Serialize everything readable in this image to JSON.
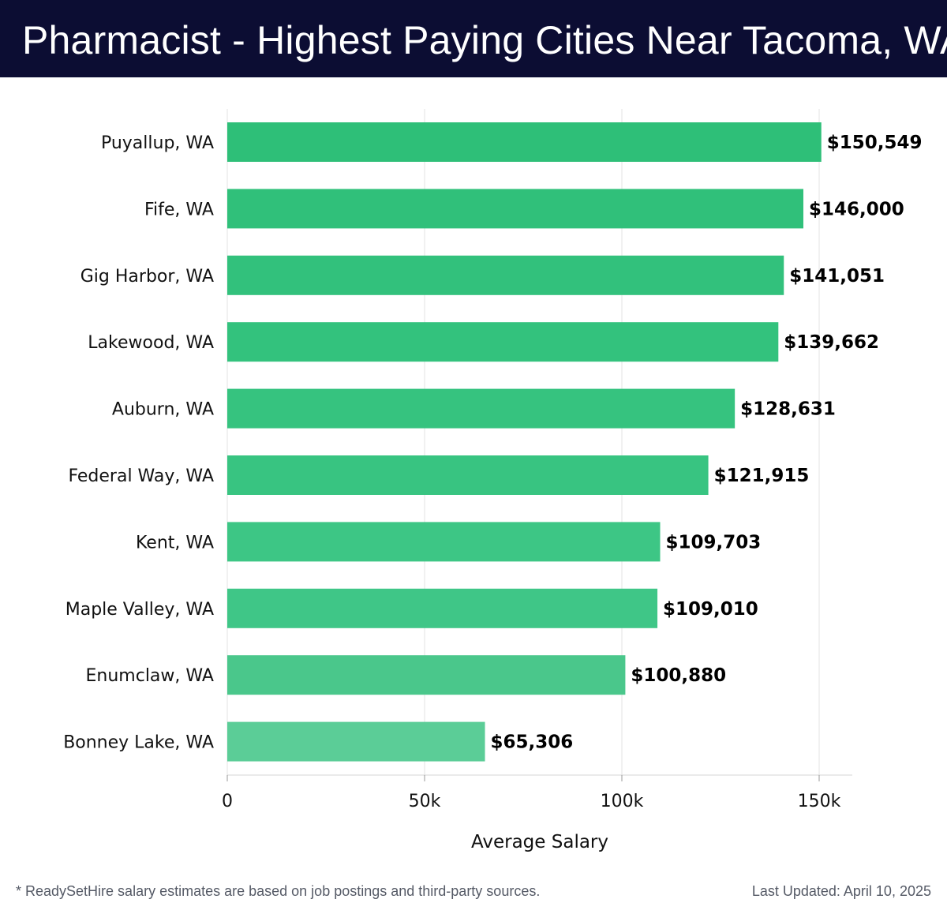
{
  "header": {
    "title": "Pharmacist - Highest Paying Cities Near Tacoma, WA"
  },
  "chart_data": {
    "type": "bar",
    "orientation": "horizontal",
    "title": "Pharmacist - Highest Paying Cities Near Tacoma, WA",
    "xlabel": "Average Salary",
    "ylabel": "",
    "xlim": [
      0,
      158000
    ],
    "xticks": [
      0,
      50000,
      100000,
      150000
    ],
    "xtick_labels": [
      "0",
      "50k",
      "100k",
      "150k"
    ],
    "grid": true,
    "categories": [
      "Puyallup, WA",
      "Fife, WA",
      "Gig Harbor, WA",
      "Lakewood, WA",
      "Auburn, WA",
      "Federal Way, WA",
      "Kent, WA",
      "Maple Valley, WA",
      "Enumclaw, WA",
      "Bonney Lake, WA"
    ],
    "values": [
      150549,
      146000,
      141051,
      139662,
      128631,
      121915,
      109703,
      109010,
      100880,
      65306
    ],
    "value_labels": [
      "$150,549",
      "$146,000",
      "$141,051",
      "$139,662",
      "$128,631",
      "$121,915",
      "$109,703",
      "$109,010",
      "$100,880",
      "$65,306"
    ],
    "bar_colors": [
      "#2ebf78",
      "#30c07a",
      "#32c17c",
      "#33c27d",
      "#36c37f",
      "#38c481",
      "#3dc685",
      "#3fc687",
      "#4ac78b",
      "#5bcd97"
    ]
  },
  "footer": {
    "note": "* ReadySetHire salary estimates are based on job postings and third-party sources.",
    "updated": "Last Updated: April 10, 2025"
  }
}
